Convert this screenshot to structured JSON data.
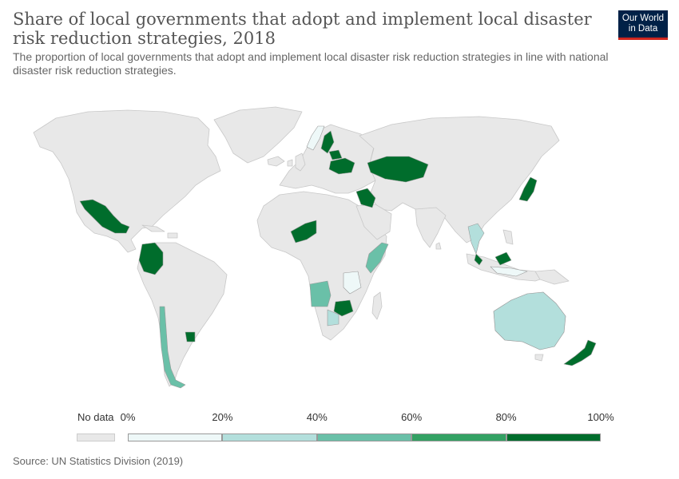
{
  "title": "Share of local governments that adopt and implement local disaster risk reduction strategies, 2018",
  "subtitle": "The proportion of local governments that adopt and implement local disaster risk reduction strategies in line with national disaster risk reduction strategies.",
  "logo": {
    "line1": "Our World",
    "line2": "in Data"
  },
  "source": "Source: UN Statistics Division (2019)",
  "colors": {
    "no_data": "#e8e8e8",
    "land_border": "#c8c8c8",
    "bins": [
      "#eef8f8",
      "#b3dfdc",
      "#6ac0a8",
      "#33a163",
      "#006d2c"
    ]
  },
  "legend": {
    "no_data_label": "No data",
    "ticks": [
      "0%",
      "20%",
      "40%",
      "60%",
      "80%",
      "100%"
    ],
    "bin_values": [
      0,
      20,
      40,
      60,
      80,
      100
    ]
  },
  "regions": [
    {
      "name": "Mexico",
      "bin": 4
    },
    {
      "name": "Colombia",
      "bin": 4
    },
    {
      "name": "Chile",
      "bin": 2
    },
    {
      "name": "Uruguay",
      "bin": 4
    },
    {
      "name": "Niger",
      "bin": 4
    },
    {
      "name": "Angola",
      "bin": 2
    },
    {
      "name": "Zimbabwe",
      "bin": 4
    },
    {
      "name": "Botswana",
      "bin": 1
    },
    {
      "name": "Somalia",
      "bin": 2
    },
    {
      "name": "Tanzania",
      "bin": 0
    },
    {
      "name": "Kazakhstan",
      "bin": 4
    },
    {
      "name": "Ukraine",
      "bin": 4
    },
    {
      "name": "Belarus",
      "bin": 4
    },
    {
      "name": "Norway",
      "bin": 0
    },
    {
      "name": "Sweden",
      "bin": 4
    },
    {
      "name": "Iraq",
      "bin": 4
    },
    {
      "name": "Japan",
      "bin": 4
    },
    {
      "name": "Thailand",
      "bin": 1
    },
    {
      "name": "Malaysia",
      "bin": 4
    },
    {
      "name": "Indonesia",
      "bin": 0
    },
    {
      "name": "Australia",
      "bin": 1
    },
    {
      "name": "New Zealand",
      "bin": 4
    }
  ]
}
